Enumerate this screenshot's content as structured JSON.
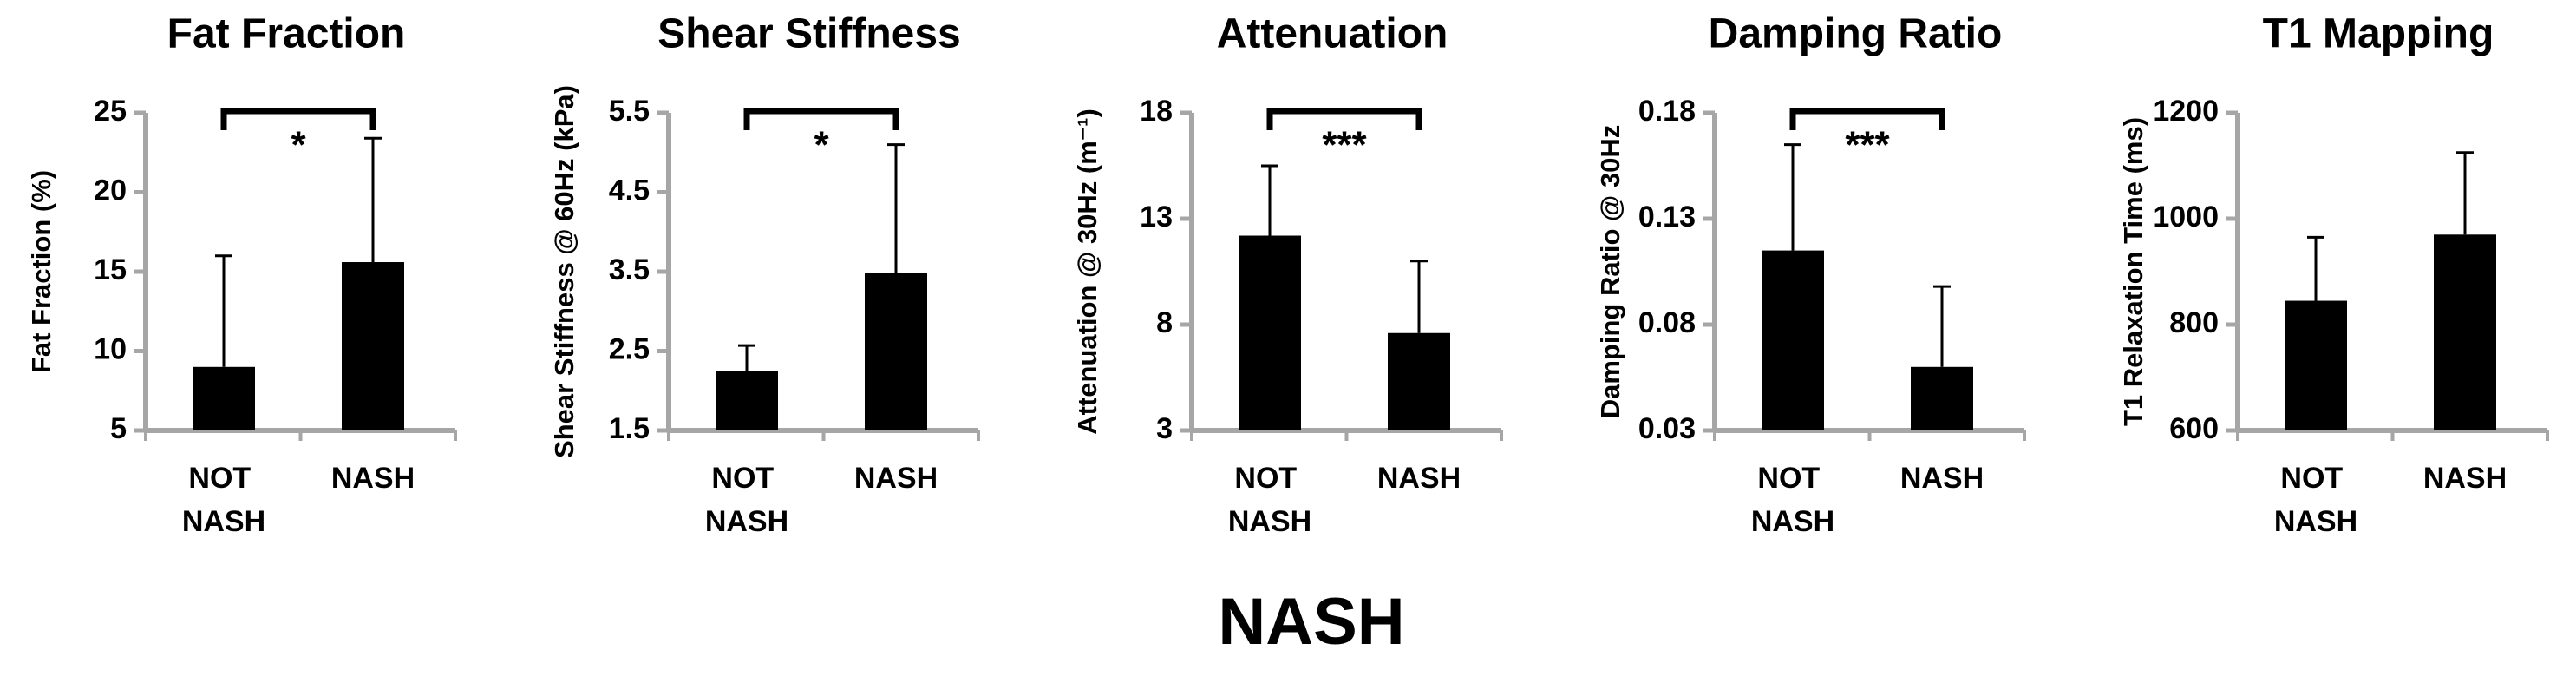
{
  "title": "NASH",
  "chart_data": [
    {
      "type": "bar",
      "title": "Fat Fraction",
      "y_label": "Fat Fraction (%)",
      "categories": [
        "NOT NASH",
        "NASH"
      ],
      "values": [
        9.0,
        15.6
      ],
      "errors": [
        7.0,
        7.8
      ],
      "color": "#000000",
      "ylim": [
        5,
        25
      ],
      "yticks": [
        5,
        10,
        15,
        20,
        25
      ],
      "annotation": "*"
    },
    {
      "type": "bar",
      "title": "Shear Stiffness",
      "y_label": "Shear Stiffness @ 60Hz (kPa)",
      "categories": [
        "NOT NASH",
        "NASH"
      ],
      "values": [
        2.25,
        3.48
      ],
      "errors": [
        0.32,
        1.62
      ],
      "color": "#000000",
      "ylim": [
        1.5,
        5.5
      ],
      "yticks": [
        1.5,
        2.5,
        3.5,
        4.5,
        5.5
      ],
      "annotation": "*"
    },
    {
      "type": "bar",
      "title": "Attenuation",
      "y_label": "Attenuation @ 30Hz (m⁻¹)",
      "categories": [
        "NOT NASH",
        "NASH"
      ],
      "values": [
        12.2,
        7.6
      ],
      "errors": [
        3.3,
        3.4
      ],
      "color": "#000000",
      "ylim": [
        3,
        18
      ],
      "yticks": [
        3,
        8,
        13,
        18
      ],
      "annotation": "***"
    },
    {
      "type": "bar",
      "title": "Damping Ratio",
      "y_label": "Damping Ratio @ 30Hz",
      "categories": [
        "NOT NASH",
        "NASH"
      ],
      "values": [
        0.115,
        0.06
      ],
      "errors": [
        0.05,
        0.038
      ],
      "color": "#000000",
      "ylim": [
        0.03,
        0.18
      ],
      "yticks": [
        0.03,
        0.08,
        0.13,
        0.18
      ],
      "annotation": "***"
    },
    {
      "type": "bar",
      "title": "T1 Mapping",
      "y_label": "T1 Relaxation Time (ms)",
      "categories": [
        "NOT NASH",
        "NASH"
      ],
      "values": [
        845,
        970
      ],
      "errors": [
        120,
        155
      ],
      "color": "#000000",
      "ylim": [
        600,
        1200
      ],
      "yticks": [
        600,
        800,
        1000,
        1200
      ]
    }
  ]
}
